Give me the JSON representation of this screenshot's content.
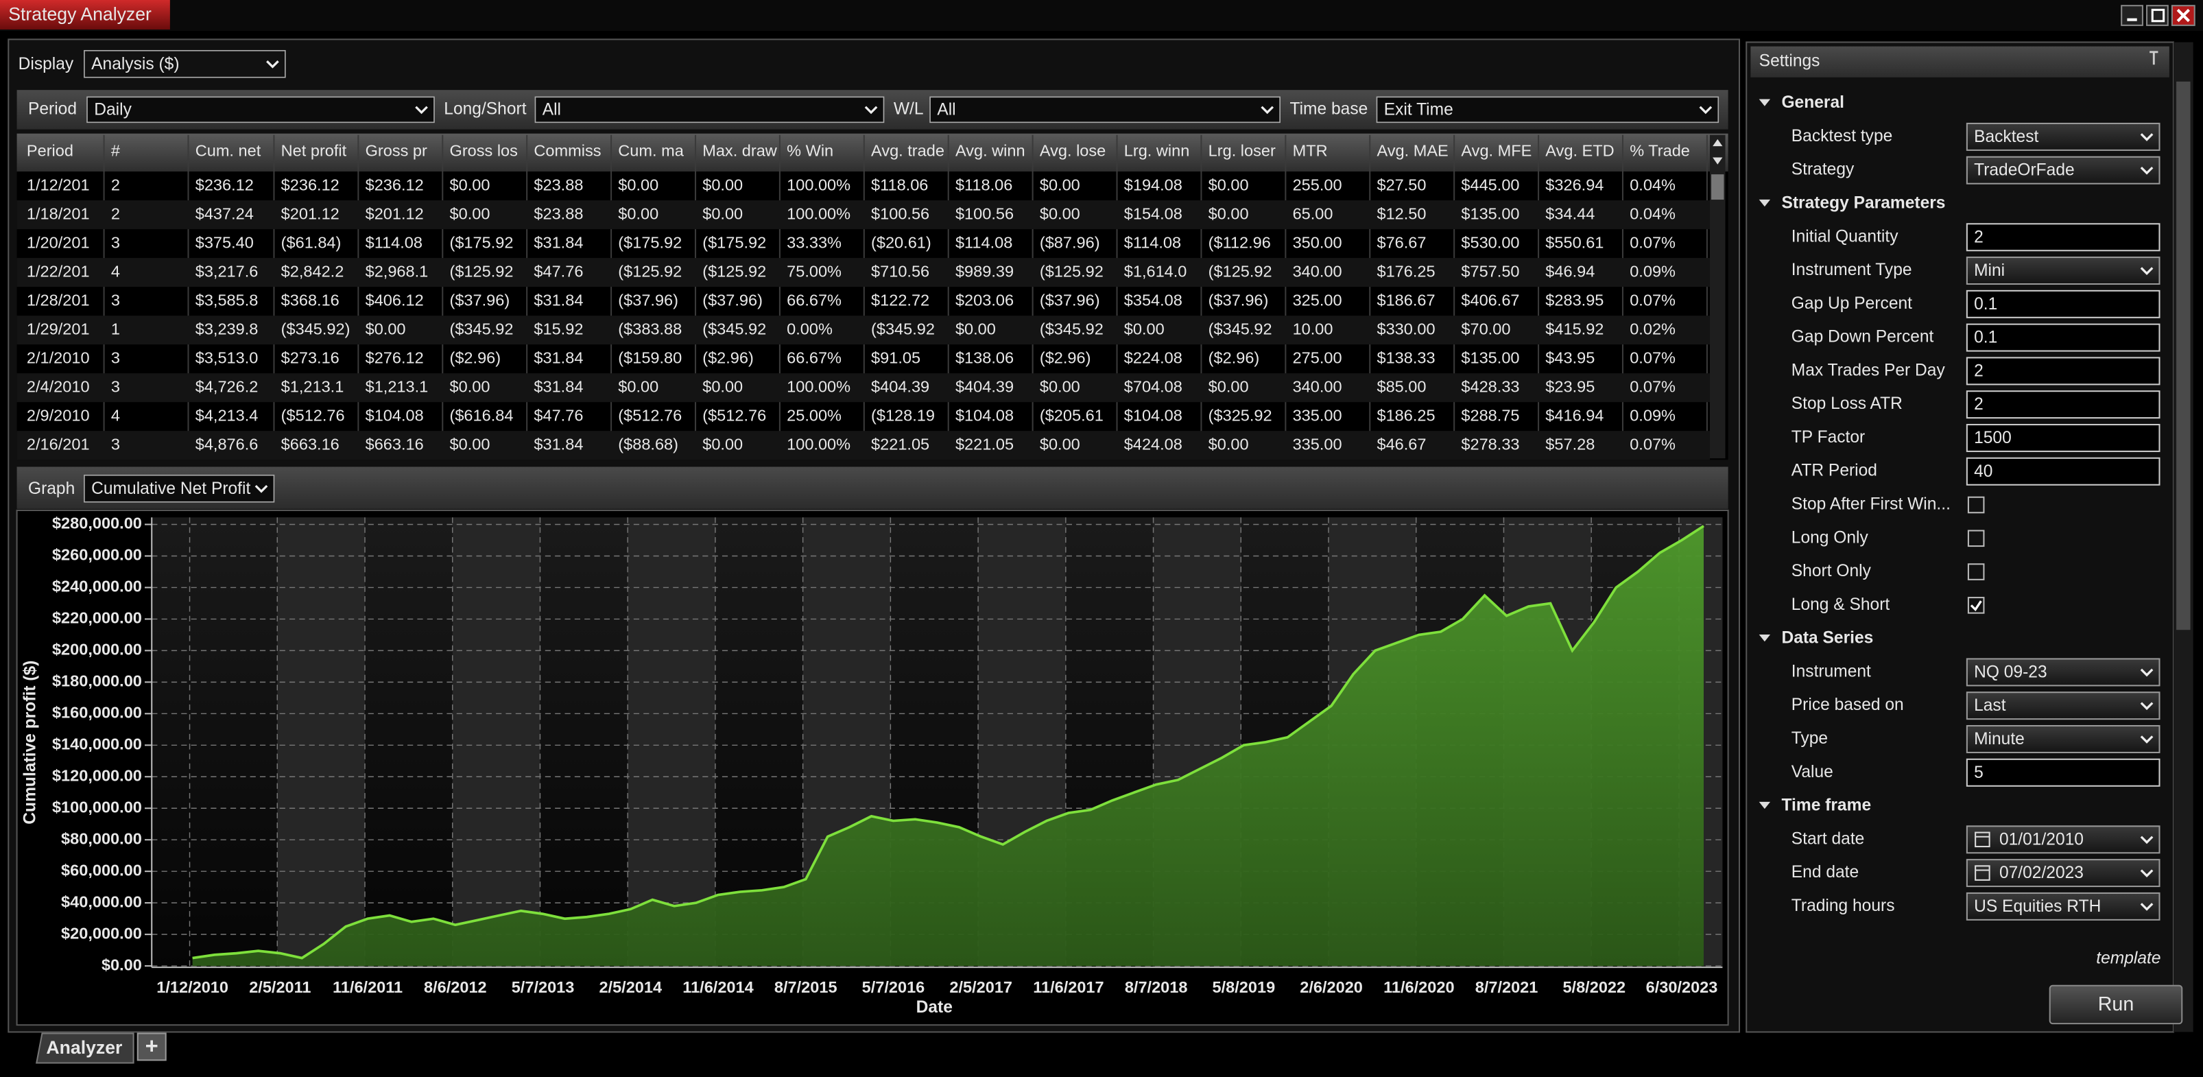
{
  "window": {
    "title": "Strategy Analyzer"
  },
  "display": {
    "label": "Display",
    "value": "Analysis ($)"
  },
  "filters": [
    {
      "label": "Period",
      "value": "Daily"
    },
    {
      "label": "Long/Short",
      "value": "All"
    },
    {
      "label": "W/L",
      "value": "All"
    },
    {
      "label": "Time base",
      "value": "Exit Time"
    }
  ],
  "table": {
    "columns": [
      "Period",
      "#",
      "Cum. net",
      "Net profit",
      "Gross pr",
      "Gross los",
      "Commiss",
      "Cum. ma",
      "Max. draw",
      "% Win",
      "Avg. trade",
      "Avg. winn",
      "Avg. lose",
      "Lrg. winn",
      "Lrg. loser",
      "MTR",
      "Avg. MAE",
      "Avg. MFE",
      "Avg. ETD",
      "% Trade"
    ],
    "rows": [
      [
        "1/12/201",
        "2",
        "$236.12",
        "$236.12",
        "$236.12",
        "$0.00",
        "$23.88",
        "$0.00",
        "$0.00",
        "100.00%",
        "$118.06",
        "$118.06",
        "$0.00",
        "$194.08",
        "$0.00",
        "255.00",
        "$27.50",
        "$445.00",
        "$326.94",
        "0.04%"
      ],
      [
        "1/18/201",
        "2",
        "$437.24",
        "$201.12",
        "$201.12",
        "$0.00",
        "$23.88",
        "$0.00",
        "$0.00",
        "100.00%",
        "$100.56",
        "$100.56",
        "$0.00",
        "$154.08",
        "$0.00",
        "65.00",
        "$12.50",
        "$135.00",
        "$34.44",
        "0.04%"
      ],
      [
        "1/20/201",
        "3",
        "$375.40",
        "($61.84)",
        "$114.08",
        "($175.92",
        "$31.84",
        "($175.92",
        "($175.92",
        "33.33%",
        "($20.61)",
        "$114.08",
        "($87.96)",
        "$114.08",
        "($112.96",
        "350.00",
        "$76.67",
        "$530.00",
        "$550.61",
        "0.07%"
      ],
      [
        "1/22/201",
        "4",
        "$3,217.6",
        "$2,842.2",
        "$2,968.1",
        "($125.92",
        "$47.76",
        "($125.92",
        "($125.92",
        "75.00%",
        "$710.56",
        "$989.39",
        "($125.92",
        "$1,614.0",
        "($125.92",
        "340.00",
        "$176.25",
        "$757.50",
        "$46.94",
        "0.09%"
      ],
      [
        "1/28/201",
        "3",
        "$3,585.8",
        "$368.16",
        "$406.12",
        "($37.96)",
        "$31.84",
        "($37.96)",
        "($37.96)",
        "66.67%",
        "$122.72",
        "$203.06",
        "($37.96)",
        "$354.08",
        "($37.96)",
        "325.00",
        "$186.67",
        "$406.67",
        "$283.95",
        "0.07%"
      ],
      [
        "1/29/201",
        "1",
        "$3,239.8",
        "($345.92)",
        "$0.00",
        "($345.92",
        "$15.92",
        "($383.88",
        "($345.92",
        "0.00%",
        "($345.92",
        "$0.00",
        "($345.92",
        "$0.00",
        "($345.92",
        "10.00",
        "$330.00",
        "$70.00",
        "$415.92",
        "0.02%"
      ],
      [
        "2/1/2010",
        "3",
        "$3,513.0",
        "$273.16",
        "$276.12",
        "($2.96)",
        "$31.84",
        "($159.80",
        "($2.96)",
        "66.67%",
        "$91.05",
        "$138.06",
        "($2.96)",
        "$224.08",
        "($2.96)",
        "275.00",
        "$138.33",
        "$135.00",
        "$43.95",
        "0.07%"
      ],
      [
        "2/4/2010",
        "3",
        "$4,726.2",
        "$1,213.1",
        "$1,213.1",
        "$0.00",
        "$31.84",
        "$0.00",
        "$0.00",
        "100.00%",
        "$404.39",
        "$404.39",
        "$0.00",
        "$704.08",
        "$0.00",
        "340.00",
        "$85.00",
        "$428.33",
        "$23.95",
        "0.07%"
      ],
      [
        "2/9/2010",
        "4",
        "$4,213.4",
        "($512.76",
        "$104.08",
        "($616.84",
        "$47.76",
        "($512.76",
        "($512.76",
        "25.00%",
        "($128.19",
        "$104.08",
        "($205.61",
        "$104.08",
        "($325.92",
        "335.00",
        "$186.25",
        "$288.75",
        "$416.94",
        "0.09%"
      ],
      [
        "2/16/201",
        "3",
        "$4,876.6",
        "$663.16",
        "$663.16",
        "$0.00",
        "$31.84",
        "($88.68)",
        "$0.00",
        "100.00%",
        "$221.05",
        "$221.05",
        "$0.00",
        "$424.08",
        "$0.00",
        "335.00",
        "$46.67",
        "$278.33",
        "$57.28",
        "0.07%"
      ]
    ]
  },
  "graph": {
    "label": "Graph",
    "value": "Cumulative Net Profit"
  },
  "chart_data": {
    "type": "area",
    "x_label": "Date",
    "y_label": "Cumulative profit ($)",
    "categories": [
      "1/12/2010",
      null,
      null,
      null,
      "2/5/2011",
      null,
      null,
      null,
      "11/6/2011",
      null,
      null,
      null,
      "8/6/2012",
      null,
      null,
      null,
      "5/7/2013",
      null,
      null,
      null,
      "2/5/2014",
      null,
      null,
      null,
      "11/6/2014",
      null,
      null,
      null,
      "8/7/2015",
      null,
      null,
      null,
      "5/7/2016",
      null,
      null,
      null,
      "2/5/2017",
      null,
      null,
      null,
      "11/6/2017",
      null,
      null,
      null,
      "8/7/2018",
      null,
      null,
      null,
      "5/8/2019",
      null,
      null,
      null,
      "2/6/2020",
      null,
      null,
      null,
      "11/6/2020",
      null,
      null,
      null,
      "8/7/2021",
      null,
      null,
      null,
      "5/8/2022",
      null,
      null,
      null,
      "6/30/2023",
      null
    ],
    "series": [
      {
        "name": "Cumulative Net Profit",
        "color": "#7ee03c",
        "fill": "#3f7a24",
        "values": [
          5000,
          7000,
          8000,
          9500,
          8000,
          5000,
          14000,
          25000,
          30000,
          32000,
          28000,
          30000,
          26000,
          29000,
          32000,
          35000,
          33000,
          30000,
          31000,
          33000,
          36000,
          42000,
          38000,
          40000,
          45000,
          47000,
          48000,
          50000,
          55000,
          82000,
          88000,
          95000,
          92000,
          93000,
          91000,
          88000,
          82000,
          77000,
          85000,
          92000,
          97000,
          99000,
          105000,
          110000,
          115000,
          118000,
          125000,
          132000,
          140000,
          142000,
          145000,
          155000,
          165000,
          185000,
          200000,
          205000,
          210000,
          212000,
          220000,
          235000,
          222000,
          228000,
          230000,
          200000,
          218000,
          240000,
          250000,
          262000,
          270000,
          279000
        ]
      }
    ],
    "ylim": [
      0,
      280000
    ],
    "yticks": [
      {
        "value": 0,
        "label": "$0.00"
      },
      {
        "value": 20000,
        "label": "$20,000.00"
      },
      {
        "value": 40000,
        "label": "$40,000.00"
      },
      {
        "value": 60000,
        "label": "$60,000.00"
      },
      {
        "value": 80000,
        "label": "$80,000.00"
      },
      {
        "value": 100000,
        "label": "$100,000.00"
      },
      {
        "value": 120000,
        "label": "$120,000.00"
      },
      {
        "value": 140000,
        "label": "$140,000.00"
      },
      {
        "value": 160000,
        "label": "$160,000.00"
      },
      {
        "value": 180000,
        "label": "$180,000.00"
      },
      {
        "value": 200000,
        "label": "$200,000.00"
      },
      {
        "value": 220000,
        "label": "$220,000.00"
      },
      {
        "value": 240000,
        "label": "$240,000.00"
      },
      {
        "value": 260000,
        "label": "$260,000.00"
      },
      {
        "value": 280000,
        "label": "$280,000.00"
      }
    ],
    "grid": true
  },
  "settings": {
    "title": "Settings",
    "sections": [
      {
        "title": "General",
        "items": [
          {
            "label": "Backtest type",
            "kind": "select",
            "value": "Backtest"
          },
          {
            "label": "Strategy",
            "kind": "select",
            "value": "TradeOrFade"
          }
        ]
      },
      {
        "title": "Strategy Parameters",
        "items": [
          {
            "label": "Initial Quantity",
            "kind": "text",
            "value": "2"
          },
          {
            "label": "Instrument Type",
            "kind": "select",
            "value": "Mini"
          },
          {
            "label": "Gap Up Percent",
            "kind": "text",
            "value": "0.1"
          },
          {
            "label": "Gap Down Percent",
            "kind": "text",
            "value": "0.1"
          },
          {
            "label": "Max Trades Per Day",
            "kind": "text",
            "value": "2"
          },
          {
            "label": "Stop Loss ATR",
            "kind": "text",
            "value": "2"
          },
          {
            "label": "TP Factor",
            "kind": "text",
            "value": "1500"
          },
          {
            "label": "ATR Period",
            "kind": "text",
            "value": "40"
          },
          {
            "label": "Stop After First Win...",
            "kind": "check",
            "checked": false
          },
          {
            "label": "Long Only",
            "kind": "check",
            "checked": false
          },
          {
            "label": "Short Only",
            "kind": "check",
            "checked": false
          },
          {
            "label": "Long & Short",
            "kind": "check",
            "checked": true
          }
        ]
      },
      {
        "title": "Data Series",
        "items": [
          {
            "label": "Instrument",
            "kind": "select",
            "value": "NQ 09-23"
          },
          {
            "label": "Price based on",
            "kind": "select",
            "value": "Last"
          },
          {
            "label": "Type",
            "kind": "select",
            "value": "Minute"
          },
          {
            "label": "Value",
            "kind": "text",
            "value": "5"
          }
        ]
      },
      {
        "title": "Time frame",
        "items": [
          {
            "label": "Start date",
            "kind": "date",
            "value": "01/01/2010"
          },
          {
            "label": "End date",
            "kind": "date",
            "value": "07/02/2023"
          },
          {
            "label": "Trading hours",
            "kind": "select",
            "value": "US Equities RTH"
          }
        ]
      }
    ],
    "template": "template",
    "run": "Run"
  },
  "tabs": {
    "active": "Analyzer",
    "add": "+"
  }
}
